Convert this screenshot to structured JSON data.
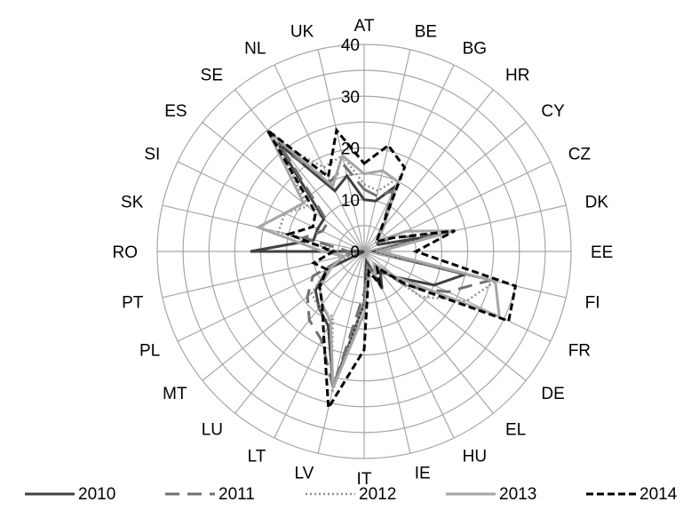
{
  "chart_data": {
    "type": "radar",
    "categories": [
      "AT",
      "BE",
      "BG",
      "HR",
      "CY",
      "CZ",
      "DK",
      "EE",
      "FI",
      "FR",
      "DE",
      "EL",
      "HU",
      "IE",
      "IT",
      "LV",
      "LT",
      "LU",
      "MT",
      "PL",
      "PT",
      "RO",
      "SK",
      "SI",
      "ES",
      "SE",
      "NL",
      "UK"
    ],
    "rlim": [
      0,
      40
    ],
    "ticks": [
      0,
      10,
      20,
      30,
      40
    ],
    "grid": true,
    "legend_position": "bottom",
    "series": [
      {
        "name": "2010",
        "color": "#404040",
        "dash": "solid",
        "values": [
          10,
          10,
          14,
          6,
          3,
          3,
          13,
          2,
          20,
          15,
          8,
          5,
          8,
          2,
          10,
          27,
          16,
          14,
          12,
          8,
          0,
          22,
          10,
          10,
          10,
          27,
          13,
          15
        ]
      },
      {
        "name": "2011",
        "color": "#707070",
        "dash": "long-dash",
        "values": [
          12,
          11,
          13,
          5,
          3,
          6,
          15,
          2,
          25,
          18,
          11,
          4,
          7,
          3,
          8,
          27,
          19,
          17,
          14,
          11,
          3,
          3,
          12,
          9,
          9,
          25,
          15,
          17
        ]
      },
      {
        "name": "2012",
        "color": "#909090",
        "dash": "dotted",
        "values": [
          13,
          12,
          16,
          6,
          3,
          9,
          18,
          2,
          26,
          22,
          14,
          4,
          5,
          3,
          10,
          28,
          14,
          14,
          13,
          8,
          3,
          5,
          17,
          17,
          14,
          27,
          18,
          19
        ]
      },
      {
        "name": "2013",
        "color": "#a6a6a6",
        "dash": "solid",
        "values": [
          15,
          16,
          15,
          6,
          3,
          9,
          18,
          3,
          26,
          29,
          8,
          3,
          5,
          4,
          12,
          27,
          15,
          13,
          11,
          7,
          4,
          8,
          21,
          17,
          15,
          30,
          14,
          19
        ]
      },
      {
        "name": "2014",
        "color": "#000000",
        "dash": "short-dash",
        "values": [
          17,
          21,
          18,
          5,
          3,
          6,
          18,
          10,
          30,
          31,
          10,
          4,
          7,
          4,
          19,
          31,
          18,
          13,
          11,
          8,
          10,
          6,
          15,
          11,
          12,
          30,
          16,
          24
        ]
      }
    ]
  }
}
